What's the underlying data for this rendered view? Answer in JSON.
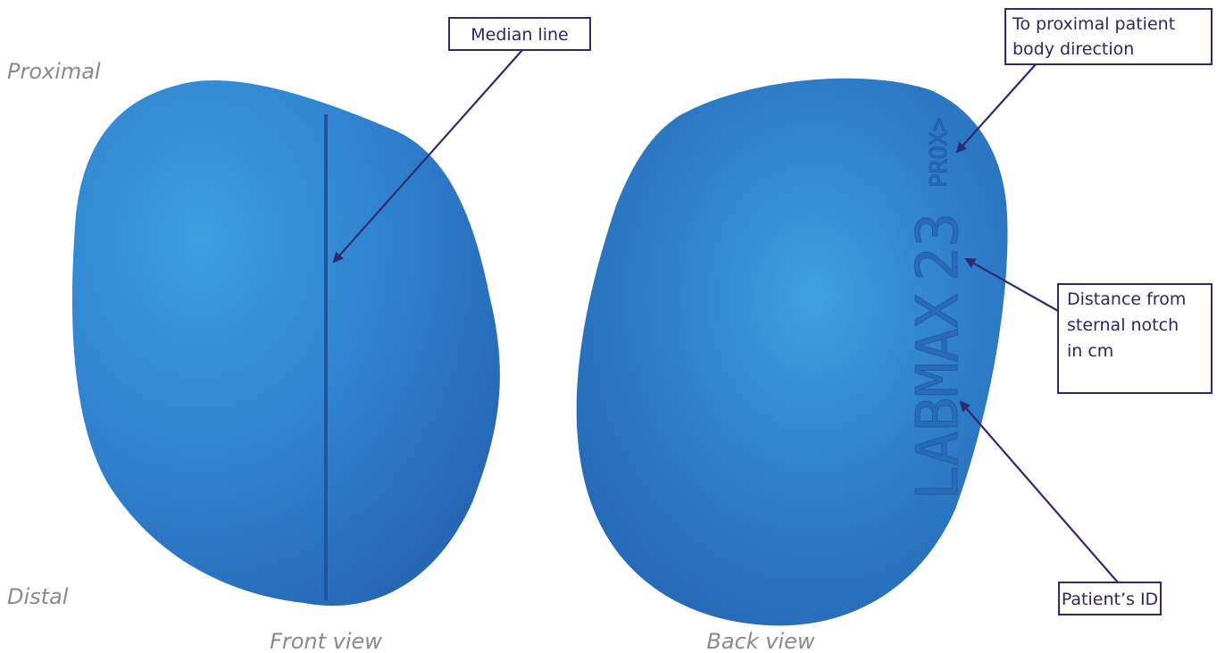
{
  "side_labels": {
    "top": "Proximal",
    "bottom": "Distal"
  },
  "views": {
    "front": "Front view",
    "back": "Back view"
  },
  "embossed": {
    "direction": "PROX>",
    "id": "LABMAX",
    "distance": "23"
  },
  "callouts": {
    "median_line": [
      "Median line"
    ],
    "proximal_direction": [
      "To proximal patient",
      "body direction"
    ],
    "distance": [
      "Distance from",
      "sternal notch",
      "in cm"
    ],
    "patient_id": [
      "Patient’s ID"
    ]
  }
}
